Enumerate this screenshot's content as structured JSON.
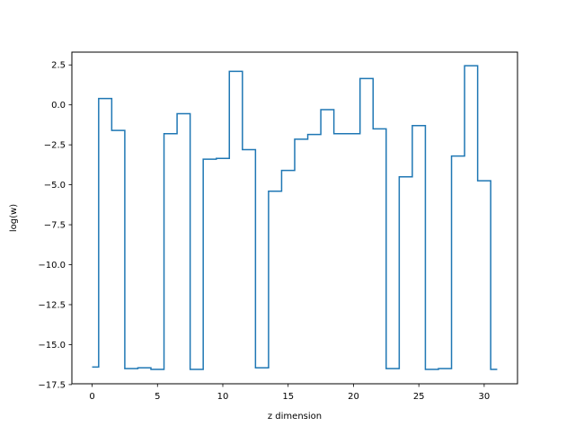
{
  "chart_data": {
    "type": "line",
    "drawstyle": "steps-mid",
    "xlabel": "z dimension",
    "ylabel": "log(w)",
    "xlim": [
      -1.55,
      32.55
    ],
    "ylim": [
      -17.45,
      3.3
    ],
    "grid": false,
    "xticks": [
      0,
      5,
      10,
      15,
      20,
      25,
      30
    ],
    "xtick_labels": [
      "0",
      "5",
      "10",
      "15",
      "20",
      "25",
      "30"
    ],
    "yticks": [
      2.5,
      0.0,
      -2.5,
      -5.0,
      -7.5,
      -10.0,
      -12.5,
      -15.0,
      -17.5
    ],
    "ytick_labels": [
      "2.5",
      "0.0",
      "−2.5",
      "−5.0",
      "−7.5",
      "−10.0",
      "−12.5",
      "−15.0",
      "−17.5"
    ],
    "series": [
      {
        "color": "#1f77b4",
        "x": [
          0,
          1,
          2,
          3,
          4,
          5,
          6,
          7,
          8,
          9,
          10,
          11,
          12,
          13,
          14,
          15,
          16,
          17,
          18,
          19,
          20,
          21,
          22,
          23,
          24,
          25,
          26,
          27,
          28,
          29,
          30,
          31
        ],
        "y": [
          -16.4,
          0.4,
          -1.6,
          -16.5,
          -16.45,
          -16.55,
          -1.8,
          -0.55,
          -16.55,
          -3.4,
          -3.35,
          2.1,
          -2.8,
          -16.45,
          -5.4,
          -4.1,
          -2.15,
          -1.85,
          -0.3,
          -1.8,
          -1.8,
          1.65,
          -1.5,
          -16.5,
          -4.5,
          -1.3,
          -16.55,
          -16.5,
          -3.2,
          2.45,
          -4.75,
          -16.55
        ]
      }
    ]
  }
}
